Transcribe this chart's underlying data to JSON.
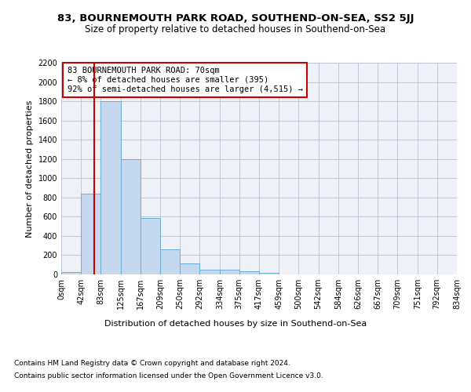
{
  "title1": "83, BOURNEMOUTH PARK ROAD, SOUTHEND-ON-SEA, SS2 5JJ",
  "title2": "Size of property relative to detached houses in Southend-on-Sea",
  "xlabel": "Distribution of detached houses by size in Southend-on-Sea",
  "ylabel": "Number of detached properties",
  "footnote1": "Contains HM Land Registry data © Crown copyright and database right 2024.",
  "footnote2": "Contains public sector information licensed under the Open Government Licence v3.0.",
  "annotation_line1": "83 BOURNEMOUTH PARK ROAD: 70sqm",
  "annotation_line2": "← 8% of detached houses are smaller (395)",
  "annotation_line3": "92% of semi-detached houses are larger (4,515) →",
  "property_x": 70,
  "bar_edges": [
    0,
    42,
    83,
    125,
    167,
    209,
    250,
    292,
    334,
    375,
    417,
    459,
    500,
    542,
    584,
    626,
    667,
    709,
    751,
    792,
    834
  ],
  "bar_heights": [
    25,
    840,
    1800,
    1200,
    585,
    260,
    115,
    50,
    45,
    30,
    20,
    0,
    0,
    0,
    0,
    0,
    0,
    0,
    0,
    0
  ],
  "bar_color": "#c5d8ed",
  "bar_edgecolor": "#6aaed6",
  "vline_color": "#cc0000",
  "annotation_box_edgecolor": "#cc0000",
  "background_color": "#ffffff",
  "axes_facecolor": "#eef2f8",
  "grid_color": "#c0c8d8",
  "ylim": [
    0,
    2200
  ],
  "xlim": [
    0,
    834
  ],
  "title1_fontsize": 9.5,
  "title2_fontsize": 8.5,
  "xlabel_fontsize": 8,
  "ylabel_fontsize": 8,
  "tick_label_fontsize": 7,
  "annotation_fontsize": 7.5,
  "footnote_fontsize": 6.5
}
